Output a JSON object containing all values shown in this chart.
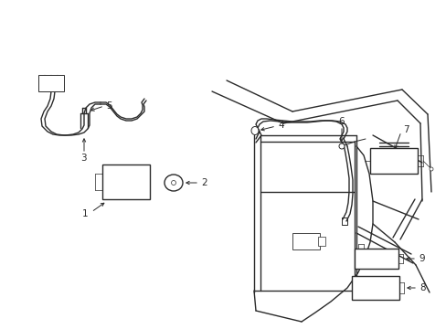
{
  "background_color": "#ffffff",
  "line_color": "#2a2a2a",
  "figsize": [
    4.89,
    3.6
  ],
  "dpi": 100,
  "label_fontsize": 7.5,
  "lw": 1.0,
  "tlw": 0.6
}
